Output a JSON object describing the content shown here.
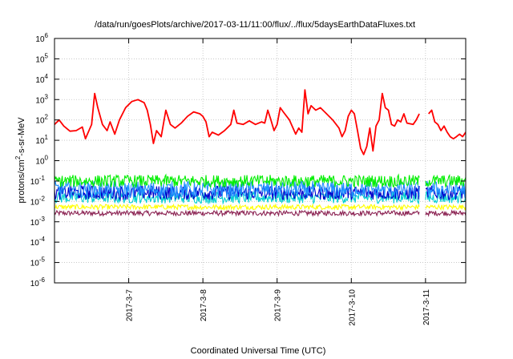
{
  "chart_data": {
    "type": "line",
    "title": "/data/run/goesPlots/archive/2017-03-11/11:00/flux/../flux/5daysEarthDataFluxes.txt",
    "xlabel": "Coordinated Universal Time (UTC)",
    "ylabel": {
      "base": "protons/cm",
      "sup": "2",
      "rest": "-s-sr-MeV"
    },
    "yscale": "log",
    "ylim": [
      1e-06,
      1000000.0
    ],
    "xlim": [
      "2017-03-06 00:00",
      "2017-03-11 13:00"
    ],
    "grid": true,
    "y_ticks": [
      {
        "mant": "10",
        "exp": "-6",
        "value": 1e-06
      },
      {
        "mant": "10",
        "exp": "-5",
        "value": 1e-05
      },
      {
        "mant": "10",
        "exp": "-4",
        "value": 0.0001
      },
      {
        "mant": "10",
        "exp": "-3",
        "value": 0.001
      },
      {
        "mant": "10",
        "exp": "-2",
        "value": 0.01
      },
      {
        "mant": "10",
        "exp": "-1",
        "value": 0.1
      },
      {
        "mant": "10",
        "exp": "0",
        "value": 1
      },
      {
        "mant": "10",
        "exp": "1",
        "value": 10
      },
      {
        "mant": "10",
        "exp": "2",
        "value": 100
      },
      {
        "mant": "10",
        "exp": "3",
        "value": 1000
      },
      {
        "mant": "10",
        "exp": "4",
        "value": 10000
      },
      {
        "mant": "10",
        "exp": "5",
        "value": 100000
      },
      {
        "mant": "10",
        "exp": "6",
        "value": 1000000
      }
    ],
    "x_ticks": [
      {
        "label": "2017-3-7",
        "value": "2017-03-07 00:00"
      },
      {
        "label": "2017-3-8",
        "value": "2017-03-08 00:00"
      },
      {
        "label": "2017-3-9",
        "value": "2017-03-09 00:00"
      },
      {
        "label": "2017-3-10",
        "value": "2017-03-10 00:00"
      },
      {
        "label": "2017-3-11",
        "value": "2017-03-11 00:00"
      }
    ],
    "data_gap": [
      "2017-03-10 22:00",
      "2017-03-11 00:00"
    ],
    "series": [
      {
        "color": "#ff0000",
        "style": "line",
        "points": [
          [
            "2017-03-06 00:00",
            60
          ],
          [
            "2017-03-06 01:30",
            100
          ],
          [
            "2017-03-06 03:00",
            50
          ],
          [
            "2017-03-06 05:00",
            28
          ],
          [
            "2017-03-06 07:00",
            30
          ],
          [
            "2017-03-06 09:00",
            45
          ],
          [
            "2017-03-06 10:00",
            12
          ],
          [
            "2017-03-06 12:00",
            60
          ],
          [
            "2017-03-06 13:00",
            2000
          ],
          [
            "2017-03-06 14:00",
            400
          ],
          [
            "2017-03-06 15:30",
            60
          ],
          [
            "2017-03-06 17:00",
            30
          ],
          [
            "2017-03-06 18:00",
            80
          ],
          [
            "2017-03-06 19:30",
            20
          ],
          [
            "2017-03-06 21:00",
            100
          ],
          [
            "2017-03-06 23:00",
            400
          ],
          [
            "2017-03-07 01:00",
            800
          ],
          [
            "2017-03-07 03:00",
            1000
          ],
          [
            "2017-03-07 05:00",
            700
          ],
          [
            "2017-03-07 06:00",
            300
          ],
          [
            "2017-03-07 07:00",
            60
          ],
          [
            "2017-03-07 08:00",
            7
          ],
          [
            "2017-03-07 09:00",
            30
          ],
          [
            "2017-03-07 10:30",
            15
          ],
          [
            "2017-03-07 12:00",
            300
          ],
          [
            "2017-03-07 13:30",
            60
          ],
          [
            "2017-03-07 15:00",
            40
          ],
          [
            "2017-03-07 17:00",
            70
          ],
          [
            "2017-03-07 19:00",
            150
          ],
          [
            "2017-03-07 21:00",
            250
          ],
          [
            "2017-03-07 23:00",
            200
          ],
          [
            "2017-03-08 00:00",
            150
          ],
          [
            "2017-03-08 01:00",
            80
          ],
          [
            "2017-03-08 02:00",
            15
          ],
          [
            "2017-03-08 03:00",
            25
          ],
          [
            "2017-03-08 05:00",
            18
          ],
          [
            "2017-03-08 07:00",
            30
          ],
          [
            "2017-03-08 09:00",
            60
          ],
          [
            "2017-03-08 10:00",
            300
          ],
          [
            "2017-03-08 11:00",
            70
          ],
          [
            "2017-03-08 13:00",
            60
          ],
          [
            "2017-03-08 15:00",
            90
          ],
          [
            "2017-03-08 17:00",
            60
          ],
          [
            "2017-03-08 19:00",
            80
          ],
          [
            "2017-03-08 20:00",
            70
          ],
          [
            "2017-03-08 21:00",
            300
          ],
          [
            "2017-03-08 22:00",
            100
          ],
          [
            "2017-03-08 23:00",
            30
          ],
          [
            "2017-03-09 00:00",
            60
          ],
          [
            "2017-03-09 01:00",
            400
          ],
          [
            "2017-03-09 02:00",
            250
          ],
          [
            "2017-03-09 04:00",
            100
          ],
          [
            "2017-03-09 06:00",
            20
          ],
          [
            "2017-03-09 07:00",
            40
          ],
          [
            "2017-03-09 08:00",
            25
          ],
          [
            "2017-03-09 09:00",
            3000
          ],
          [
            "2017-03-09 10:00",
            200
          ],
          [
            "2017-03-09 11:00",
            500
          ],
          [
            "2017-03-09 12:30",
            300
          ],
          [
            "2017-03-09 14:00",
            400
          ],
          [
            "2017-03-09 16:00",
            200
          ],
          [
            "2017-03-09 18:00",
            100
          ],
          [
            "2017-03-09 20:00",
            40
          ],
          [
            "2017-03-09 21:00",
            15
          ],
          [
            "2017-03-09 22:00",
            30
          ],
          [
            "2017-03-09 23:00",
            150
          ],
          [
            "2017-03-10 00:00",
            300
          ],
          [
            "2017-03-10 01:00",
            200
          ],
          [
            "2017-03-10 02:00",
            30
          ],
          [
            "2017-03-10 03:00",
            4
          ],
          [
            "2017-03-10 04:00",
            2
          ],
          [
            "2017-03-10 05:00",
            5
          ],
          [
            "2017-03-10 06:00",
            40
          ],
          [
            "2017-03-10 07:00",
            3
          ],
          [
            "2017-03-10 08:00",
            50
          ],
          [
            "2017-03-10 09:00",
            100
          ],
          [
            "2017-03-10 10:00",
            2000
          ],
          [
            "2017-03-10 11:00",
            400
          ],
          [
            "2017-03-10 12:00",
            300
          ],
          [
            "2017-03-10 13:00",
            60
          ],
          [
            "2017-03-10 14:00",
            50
          ],
          [
            "2017-03-10 15:00",
            100
          ],
          [
            "2017-03-10 16:00",
            80
          ],
          [
            "2017-03-10 17:00",
            200
          ],
          [
            "2017-03-10 18:00",
            70
          ],
          [
            "2017-03-10 20:00",
            60
          ],
          [
            "2017-03-10 21:00",
            100
          ],
          [
            "2017-03-10 22:00",
            200
          ],
          [
            "2017-03-11 00:00",
            null
          ],
          [
            "2017-03-11 01:00",
            200
          ],
          [
            "2017-03-11 02:00",
            300
          ],
          [
            "2017-03-11 03:00",
            80
          ],
          [
            "2017-03-11 04:00",
            60
          ],
          [
            "2017-03-11 05:00",
            30
          ],
          [
            "2017-03-11 06:00",
            50
          ],
          [
            "2017-03-11 07:00",
            25
          ],
          [
            "2017-03-11 08:00",
            15
          ],
          [
            "2017-03-11 09:00",
            12
          ],
          [
            "2017-03-11 10:00",
            15
          ],
          [
            "2017-03-11 11:00",
            20
          ],
          [
            "2017-03-11 12:00",
            15
          ],
          [
            "2017-03-11 13:00",
            25
          ]
        ]
      },
      {
        "color": "#00ee00",
        "style": "noisy-band",
        "band": [
          0.05,
          0.2
        ]
      },
      {
        "color": "#1e90ff",
        "style": "noisy-band",
        "band": [
          0.015,
          0.1
        ]
      },
      {
        "color": "#0000cd",
        "style": "noisy-band",
        "band": [
          0.012,
          0.06
        ]
      },
      {
        "color": "#00ced1",
        "style": "noisy-band",
        "band": [
          0.008,
          0.03
        ]
      },
      {
        "color": "#ffff00",
        "style": "noisy-band",
        "band": [
          0.004,
          0.007
        ]
      },
      {
        "color": "#8b2252",
        "style": "noisy-band",
        "band": [
          0.002,
          0.0035
        ]
      }
    ]
  }
}
